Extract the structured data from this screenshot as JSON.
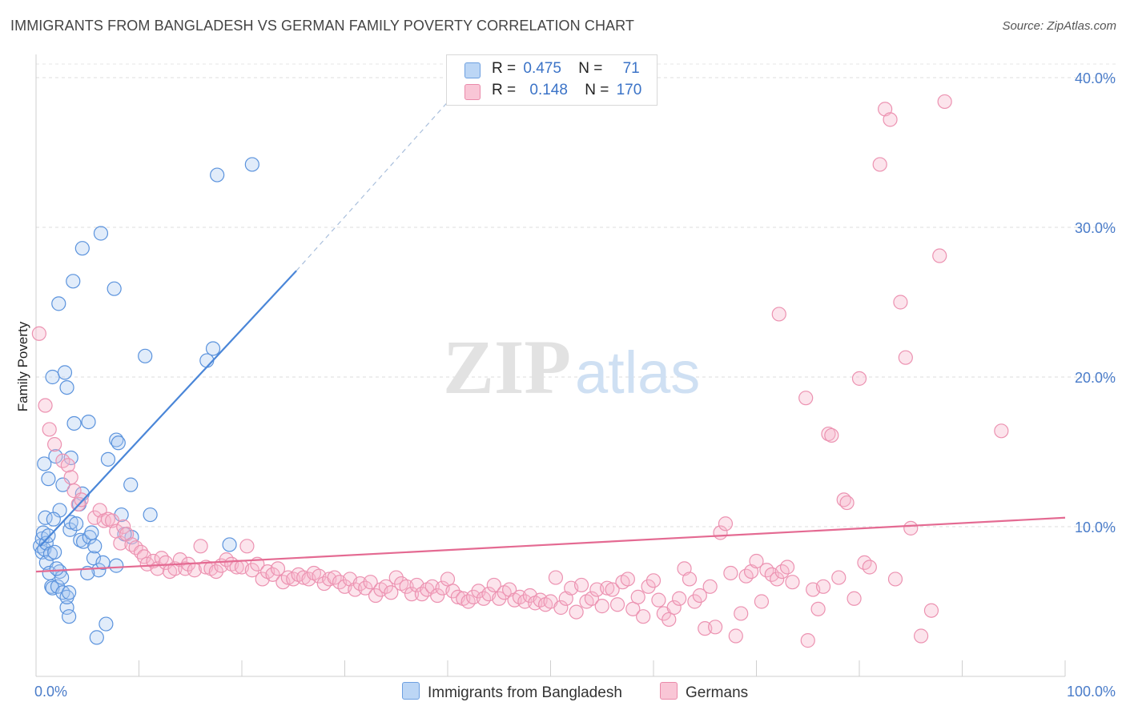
{
  "title": "IMMIGRANTS FROM BANGLADESH VS GERMAN FAMILY POVERTY CORRELATION CHART",
  "source": "Source: ZipAtlas.com",
  "watermark": {
    "zip": "ZIP",
    "atlas": "atlas"
  },
  "legend": {
    "rows": [
      {
        "r_label": "R =",
        "r_value": "0.475",
        "n_label": "N =",
        "n_value": "71",
        "color": "#a9c9f2"
      },
      {
        "r_label": "R =",
        "r_value": "0.148",
        "n_label": "N =",
        "n_value": "170",
        "color": "#f7b9cc"
      }
    ]
  },
  "bottom_legend": [
    {
      "label": "Immigrants from Bangladesh",
      "color": "#a9c9f2"
    },
    {
      "label": "Germans",
      "color": "#f7b9cc"
    }
  ],
  "chart_data": {
    "type": "scatter",
    "title": "IMMIGRANTS FROM BANGLADESH VS GERMAN FAMILY POVERTY CORRELATION CHART",
    "ylabel": "Family Poverty",
    "xlabel": "",
    "xlim": [
      0,
      100
    ],
    "ylim": [
      0,
      40
    ],
    "x_tick_labels": [
      "0.0%",
      "100.0%"
    ],
    "y_ticks": [
      10,
      20,
      30,
      40
    ],
    "y_tick_labels": [
      "10.0%",
      "20.0%",
      "30.0%",
      "40.0%"
    ],
    "grid": "horizontal dashed",
    "legend_position": "top-center",
    "series": [
      {
        "name": "Immigrants from Bangladesh",
        "color": "#4a86d8",
        "fill": "#a9c9f2",
        "trend": {
          "x": [
            0.4,
            25.3
          ],
          "y": [
            8.7,
            27.1
          ],
          "dashed_to": [
            40.3,
            38.6
          ]
        },
        "points": [
          [
            0.4,
            8.7
          ],
          [
            0.6,
            8.3
          ],
          [
            0.6,
            9.2
          ],
          [
            0.8,
            8.5
          ],
          [
            0.7,
            9.6
          ],
          [
            0.9,
            10.6
          ],
          [
            0.8,
            14.2
          ],
          [
            1.0,
            7.6
          ],
          [
            1.0,
            8.9
          ],
          [
            1.2,
            9.4
          ],
          [
            1.3,
            6.9
          ],
          [
            1.4,
            8.2
          ],
          [
            1.2,
            13.2
          ],
          [
            1.5,
            6.0
          ],
          [
            1.6,
            5.9
          ],
          [
            1.6,
            20.0
          ],
          [
            1.8,
            8.3
          ],
          [
            1.9,
            14.7
          ],
          [
            2.2,
            24.9
          ],
          [
            2.3,
            7.0
          ],
          [
            2.3,
            11.1
          ],
          [
            2.1,
            6.0
          ],
          [
            2.5,
            6.6
          ],
          [
            2.6,
            12.8
          ],
          [
            2.6,
            5.6
          ],
          [
            2.8,
            20.3
          ],
          [
            3.0,
            19.3
          ],
          [
            3.0,
            4.6
          ],
          [
            3.0,
            5.3
          ],
          [
            3.2,
            5.6
          ],
          [
            3.3,
            9.8
          ],
          [
            3.4,
            14.6
          ],
          [
            3.4,
            10.3
          ],
          [
            3.6,
            26.4
          ],
          [
            3.7,
            16.9
          ],
          [
            3.9,
            10.2
          ],
          [
            4.2,
            11.5
          ],
          [
            4.3,
            9.1
          ],
          [
            4.5,
            12.2
          ],
          [
            4.5,
            28.6
          ],
          [
            4.6,
            9.0
          ],
          [
            5.1,
            17.0
          ],
          [
            5.2,
            9.3
          ],
          [
            5.4,
            9.6
          ],
          [
            5.6,
            7.9
          ],
          [
            5.7,
            8.7
          ],
          [
            5.9,
            2.6
          ],
          [
            6.1,
            7.1
          ],
          [
            6.3,
            29.6
          ],
          [
            6.5,
            7.6
          ],
          [
            6.8,
            3.5
          ],
          [
            7.0,
            14.5
          ],
          [
            7.6,
            25.9
          ],
          [
            7.8,
            7.4
          ],
          [
            7.8,
            15.8
          ],
          [
            8.0,
            15.6
          ],
          [
            8.3,
            10.8
          ],
          [
            9.2,
            12.8
          ],
          [
            9.3,
            9.3
          ],
          [
            10.6,
            21.4
          ],
          [
            11.1,
            10.8
          ],
          [
            16.6,
            21.1
          ],
          [
            17.2,
            21.9
          ],
          [
            17.6,
            33.5
          ],
          [
            18.8,
            8.8
          ],
          [
            21.0,
            34.2
          ],
          [
            3.2,
            4.0
          ],
          [
            2.0,
            7.2
          ],
          [
            1.7,
            10.5
          ],
          [
            5.0,
            6.9
          ],
          [
            8.6,
            9.5
          ]
        ]
      },
      {
        "name": "Germans",
        "color": "#e46a92",
        "fill": "#f7b9cc",
        "trend": {
          "x": [
            0.0,
            100.0
          ],
          "y": [
            7.0,
            10.6
          ]
        },
        "points": [
          [
            0.3,
            22.9
          ],
          [
            0.9,
            18.1
          ],
          [
            1.3,
            16.5
          ],
          [
            1.8,
            15.5
          ],
          [
            2.6,
            14.4
          ],
          [
            3.1,
            14.1
          ],
          [
            3.4,
            13.3
          ],
          [
            3.7,
            12.4
          ],
          [
            4.1,
            11.5
          ],
          [
            4.4,
            11.8
          ],
          [
            5.7,
            10.6
          ],
          [
            6.2,
            11.1
          ],
          [
            6.6,
            10.4
          ],
          [
            7.0,
            10.5
          ],
          [
            7.4,
            10.4
          ],
          [
            7.8,
            9.7
          ],
          [
            8.2,
            8.9
          ],
          [
            8.5,
            10.0
          ],
          [
            8.8,
            9.5
          ],
          [
            9.3,
            8.8
          ],
          [
            9.7,
            8.6
          ],
          [
            10.2,
            8.3
          ],
          [
            10.5,
            8.0
          ],
          [
            10.8,
            7.5
          ],
          [
            11.4,
            7.7
          ],
          [
            11.8,
            7.2
          ],
          [
            12.2,
            7.9
          ],
          [
            12.6,
            7.6
          ],
          [
            13.0,
            7.0
          ],
          [
            13.5,
            7.2
          ],
          [
            14.0,
            7.8
          ],
          [
            14.5,
            7.2
          ],
          [
            14.8,
            7.5
          ],
          [
            15.4,
            7.1
          ],
          [
            16.0,
            8.7
          ],
          [
            16.5,
            7.3
          ],
          [
            17.0,
            7.2
          ],
          [
            17.5,
            7.0
          ],
          [
            18.0,
            7.4
          ],
          [
            18.5,
            7.8
          ],
          [
            19.0,
            7.5
          ],
          [
            19.5,
            7.3
          ],
          [
            20.0,
            7.3
          ],
          [
            20.5,
            8.7
          ],
          [
            21.0,
            7.1
          ],
          [
            21.5,
            7.5
          ],
          [
            22.0,
            6.5
          ],
          [
            22.5,
            7.0
          ],
          [
            23.0,
            6.8
          ],
          [
            23.5,
            7.2
          ],
          [
            24.0,
            6.3
          ],
          [
            24.5,
            6.6
          ],
          [
            25.0,
            6.5
          ],
          [
            25.5,
            6.8
          ],
          [
            26.0,
            6.6
          ],
          [
            26.5,
            6.5
          ],
          [
            27.0,
            6.9
          ],
          [
            27.5,
            6.7
          ],
          [
            28.0,
            6.2
          ],
          [
            28.5,
            6.5
          ],
          [
            29.0,
            6.6
          ],
          [
            29.5,
            6.3
          ],
          [
            30.0,
            6.0
          ],
          [
            30.5,
            6.5
          ],
          [
            31.0,
            5.8
          ],
          [
            31.5,
            6.2
          ],
          [
            32.0,
            5.9
          ],
          [
            32.5,
            6.3
          ],
          [
            33.0,
            5.4
          ],
          [
            33.5,
            5.8
          ],
          [
            34.0,
            6.0
          ],
          [
            34.5,
            5.6
          ],
          [
            35.0,
            6.6
          ],
          [
            35.5,
            6.2
          ],
          [
            36.0,
            6.0
          ],
          [
            36.5,
            5.5
          ],
          [
            37.0,
            6.1
          ],
          [
            37.5,
            5.5
          ],
          [
            38.0,
            5.8
          ],
          [
            38.5,
            6.0
          ],
          [
            39.0,
            5.4
          ],
          [
            39.5,
            5.9
          ],
          [
            40.0,
            6.5
          ],
          [
            40.5,
            5.7
          ],
          [
            41.0,
            5.3
          ],
          [
            41.5,
            5.2
          ],
          [
            42.0,
            5.0
          ],
          [
            42.5,
            5.3
          ],
          [
            43.0,
            5.7
          ],
          [
            43.5,
            5.2
          ],
          [
            44.0,
            5.5
          ],
          [
            44.5,
            6.1
          ],
          [
            45.0,
            5.2
          ],
          [
            45.5,
            5.6
          ],
          [
            46.0,
            5.8
          ],
          [
            46.5,
            5.1
          ],
          [
            47.0,
            5.3
          ],
          [
            47.5,
            5.0
          ],
          [
            48.0,
            5.4
          ],
          [
            48.5,
            4.9
          ],
          [
            49.0,
            5.1
          ],
          [
            49.5,
            4.8
          ],
          [
            50.0,
            5.0
          ],
          [
            50.5,
            6.6
          ],
          [
            51.0,
            4.6
          ],
          [
            51.5,
            5.2
          ],
          [
            52.0,
            5.9
          ],
          [
            52.5,
            4.3
          ],
          [
            53.0,
            6.1
          ],
          [
            53.5,
            5.0
          ],
          [
            54.0,
            5.2
          ],
          [
            54.5,
            5.8
          ],
          [
            55.0,
            4.7
          ],
          [
            55.5,
            5.9
          ],
          [
            56.0,
            5.8
          ],
          [
            56.5,
            4.8
          ],
          [
            57.0,
            6.3
          ],
          [
            57.5,
            6.5
          ],
          [
            58.0,
            4.5
          ],
          [
            58.5,
            5.3
          ],
          [
            59.0,
            4.0
          ],
          [
            59.5,
            6.0
          ],
          [
            60.0,
            6.4
          ],
          [
            60.5,
            5.1
          ],
          [
            61.0,
            4.2
          ],
          [
            61.5,
            3.8
          ],
          [
            62.0,
            4.6
          ],
          [
            62.5,
            5.2
          ],
          [
            63.0,
            7.2
          ],
          [
            63.5,
            6.5
          ],
          [
            64.0,
            5.0
          ],
          [
            64.5,
            5.4
          ],
          [
            65.0,
            3.2
          ],
          [
            65.5,
            6.0
          ],
          [
            66.0,
            3.3
          ],
          [
            66.5,
            9.6
          ],
          [
            67.0,
            10.2
          ],
          [
            67.5,
            6.9
          ],
          [
            68.0,
            2.7
          ],
          [
            68.5,
            4.2
          ],
          [
            69.0,
            6.7
          ],
          [
            69.5,
            7.0
          ],
          [
            70.0,
            7.7
          ],
          [
            70.5,
            5.0
          ],
          [
            71.0,
            7.1
          ],
          [
            71.5,
            6.8
          ],
          [
            72.0,
            6.5
          ],
          [
            72.5,
            7.0
          ],
          [
            73.0,
            7.3
          ],
          [
            73.5,
            6.3
          ],
          [
            72.2,
            24.2
          ],
          [
            75.0,
            2.4
          ],
          [
            75.5,
            5.8
          ],
          [
            74.8,
            18.6
          ],
          [
            76.0,
            4.5
          ],
          [
            76.5,
            6.0
          ],
          [
            77.0,
            16.2
          ],
          [
            77.3,
            16.1
          ],
          [
            78.0,
            6.6
          ],
          [
            78.5,
            11.8
          ],
          [
            78.8,
            11.6
          ],
          [
            79.5,
            5.2
          ],
          [
            80.0,
            19.9
          ],
          [
            80.5,
            7.6
          ],
          [
            81.0,
            7.3
          ],
          [
            82.0,
            34.2
          ],
          [
            82.5,
            37.9
          ],
          [
            83.0,
            37.2
          ],
          [
            83.5,
            6.5
          ],
          [
            84.0,
            25.0
          ],
          [
            84.5,
            21.3
          ],
          [
            85.0,
            9.9
          ],
          [
            86.0,
            2.7
          ],
          [
            87.0,
            4.4
          ],
          [
            87.8,
            28.1
          ],
          [
            88.3,
            38.4
          ],
          [
            93.8,
            16.4
          ]
        ]
      }
    ]
  }
}
